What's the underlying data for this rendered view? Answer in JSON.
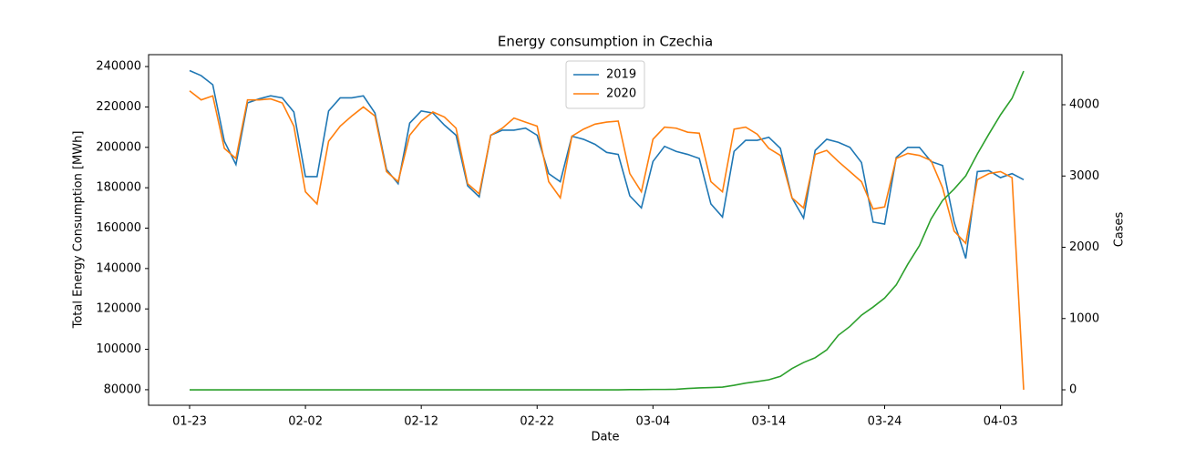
{
  "chart_data": {
    "type": "line",
    "title": "Energy consumption in Czechia",
    "xlabel": "Date",
    "ylabel": "Total Energy Consumption [MWh]",
    "y2label": "Cases",
    "y2label_color": "#2ca02c",
    "x": [
      "01-23",
      "01-24",
      "01-25",
      "01-26",
      "01-27",
      "01-28",
      "01-29",
      "01-30",
      "01-31",
      "02-01",
      "02-02",
      "02-03",
      "02-04",
      "02-05",
      "02-06",
      "02-07",
      "02-08",
      "02-09",
      "02-10",
      "02-11",
      "02-12",
      "02-13",
      "02-14",
      "02-15",
      "02-16",
      "02-17",
      "02-18",
      "02-19",
      "02-20",
      "02-21",
      "02-22",
      "02-23",
      "02-24",
      "02-25",
      "02-26",
      "02-27",
      "02-28",
      "03-01",
      "03-02",
      "03-03",
      "03-04",
      "03-05",
      "03-06",
      "03-07",
      "03-08",
      "03-09",
      "03-10",
      "03-11",
      "03-12",
      "03-13",
      "03-14",
      "03-15",
      "03-16",
      "03-17",
      "03-18",
      "03-19",
      "03-20",
      "03-21",
      "03-22",
      "03-23",
      "03-24",
      "03-25",
      "03-26",
      "03-27",
      "03-28",
      "03-29",
      "03-30",
      "03-31",
      "04-01",
      "04-02",
      "04-03",
      "04-04",
      "04-05"
    ],
    "xticks": [
      "01-23",
      "02-02",
      "02-12",
      "02-22",
      "03-04",
      "03-14",
      "03-24",
      "04-03"
    ],
    "ylim": [
      72300,
      245900
    ],
    "yticks": [
      80000,
      100000,
      120000,
      140000,
      160000,
      180000,
      200000,
      220000,
      240000
    ],
    "y2lim": [
      -217,
      4703
    ],
    "y2ticks": [
      0,
      1000,
      2000,
      3000,
      4000
    ],
    "legend": "upper center",
    "series": [
      {
        "name": "2019",
        "color": "#1f77b4",
        "values": [
          238000,
          235500,
          231000,
          203000,
          191500,
          222000,
          224000,
          225500,
          224500,
          217500,
          185500,
          185500,
          218000,
          224500,
          224500,
          225500,
          217000,
          189000,
          182000,
          212000,
          218000,
          217000,
          211000,
          206000,
          181000,
          175500,
          206000,
          208500,
          208500,
          209500,
          206000,
          187000,
          183000,
          205500,
          204000,
          201500,
          197500,
          196500,
          176000,
          170000,
          193000,
          200500,
          198000,
          196500,
          194500,
          172000,
          165500,
          198000,
          203500,
          203500,
          205000,
          199500,
          175000,
          165000,
          198500,
          204000,
          202500,
          200000,
          192500,
          163000,
          162000,
          195000,
          200000,
          200000,
          193000,
          191000,
          163000,
          145000,
          188000,
          188500,
          185000,
          187000,
          184000
        ]
      },
      {
        "name": "2020",
        "color": "#ff7f0e",
        "values": [
          228000,
          223500,
          225500,
          199500,
          194500,
          223500,
          223500,
          224000,
          222000,
          210500,
          178000,
          172000,
          203000,
          210500,
          215500,
          220000,
          215500,
          188000,
          183000,
          206000,
          213000,
          217500,
          215000,
          209500,
          182000,
          177000,
          206000,
          209500,
          214500,
          212500,
          210500,
          183000,
          175000,
          205500,
          209000,
          211500,
          212500,
          213000,
          187000,
          178000,
          204000,
          210000,
          209500,
          207500,
          207000,
          183000,
          178000,
          209000,
          210000,
          206500,
          199500,
          196000,
          175000,
          170000,
          196500,
          198500,
          193000,
          188000,
          183000,
          169500,
          170500,
          194500,
          197000,
          196000,
          193500,
          180000,
          158500,
          152500,
          184000,
          187000,
          188000,
          185000,
          80000
        ]
      },
      {
        "color": "#2ca02c",
        "axis": "y2",
        "values": [
          0,
          0,
          0,
          0,
          0,
          0,
          0,
          0,
          0,
          0,
          0,
          0,
          0,
          0,
          0,
          0,
          0,
          0,
          0,
          0,
          0,
          0,
          0,
          0,
          0,
          0,
          0,
          0,
          0,
          0,
          0,
          0,
          0,
          0,
          0,
          0,
          0,
          0,
          3,
          3,
          5,
          5,
          8,
          19,
          26,
          32,
          38,
          63,
          94,
          116,
          141,
          189,
          298,
          383,
          450,
          560,
          765,
          889,
          1047,
          1161,
          1287,
          1472,
          1763,
          2022,
          2395,
          2657,
          2817,
          3001,
          3308,
          3589,
          3858,
          4091,
          4472
        ]
      }
    ]
  }
}
